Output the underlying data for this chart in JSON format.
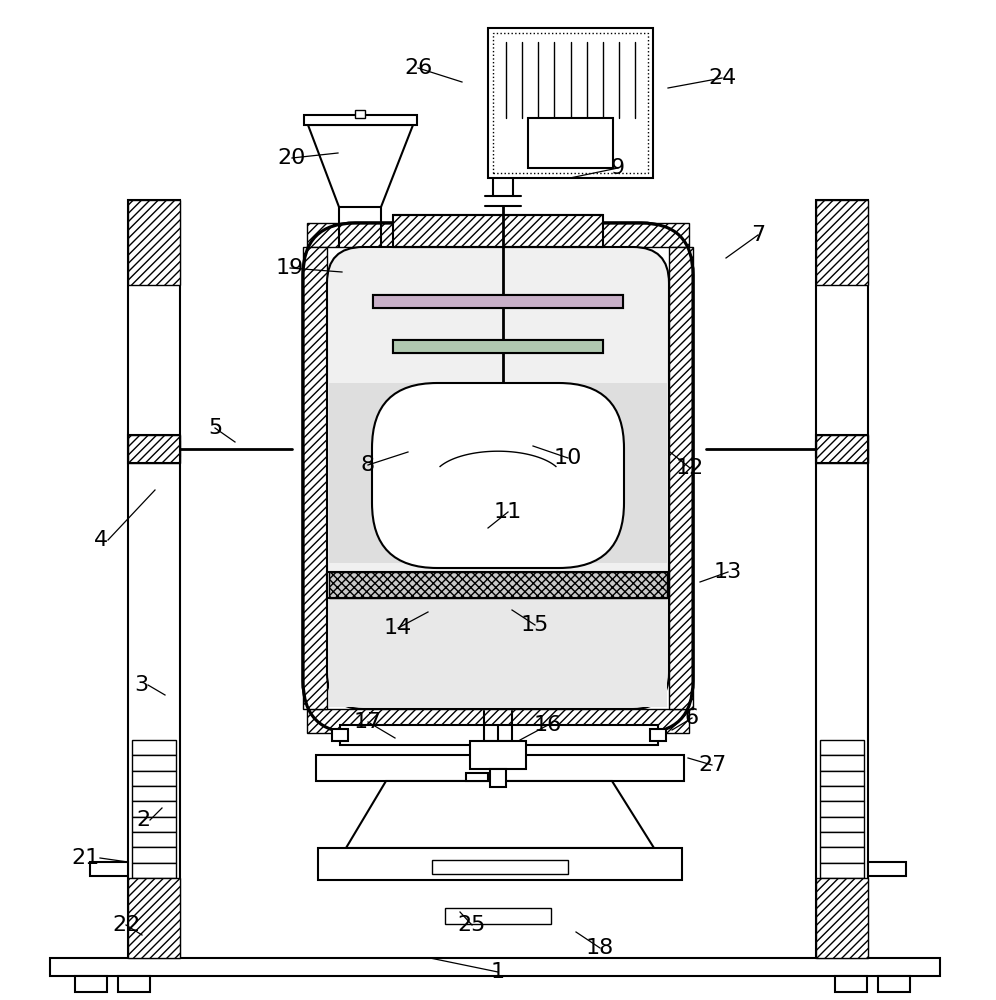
{
  "bg_color": "#ffffff",
  "line_color": "#000000",
  "hatch_color": "#555555",
  "label_color": "#000000",
  "font_size": 16,
  "lw": 1.5,
  "thin_lw": 1.0
}
